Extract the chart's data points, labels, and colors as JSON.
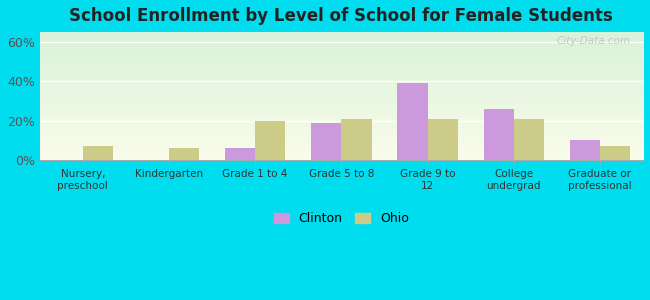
{
  "title": "School Enrollment by Level of School for Female Students",
  "categories": [
    "Nursery,\npreschool",
    "Kindergarten",
    "Grade 1 to 4",
    "Grade 5 to 8",
    "Grade 9 to\n12",
    "College\nundergrad",
    "Graduate or\nprofessional"
  ],
  "clinton_values": [
    0,
    0,
    6,
    19,
    39,
    26,
    10
  ],
  "ohio_values": [
    7,
    6,
    20,
    21,
    21,
    21,
    7
  ],
  "clinton_color": "#cc99dd",
  "ohio_color": "#cccc88",
  "ylim": [
    0,
    65
  ],
  "yticks": [
    0,
    20,
    40,
    60
  ],
  "ytick_labels": [
    "0%",
    "20%",
    "40%",
    "60%"
  ],
  "background_color": "#00ddee",
  "bar_width": 0.35,
  "legend_labels": [
    "Clinton",
    "Ohio"
  ],
  "watermark": "City-Data.com"
}
